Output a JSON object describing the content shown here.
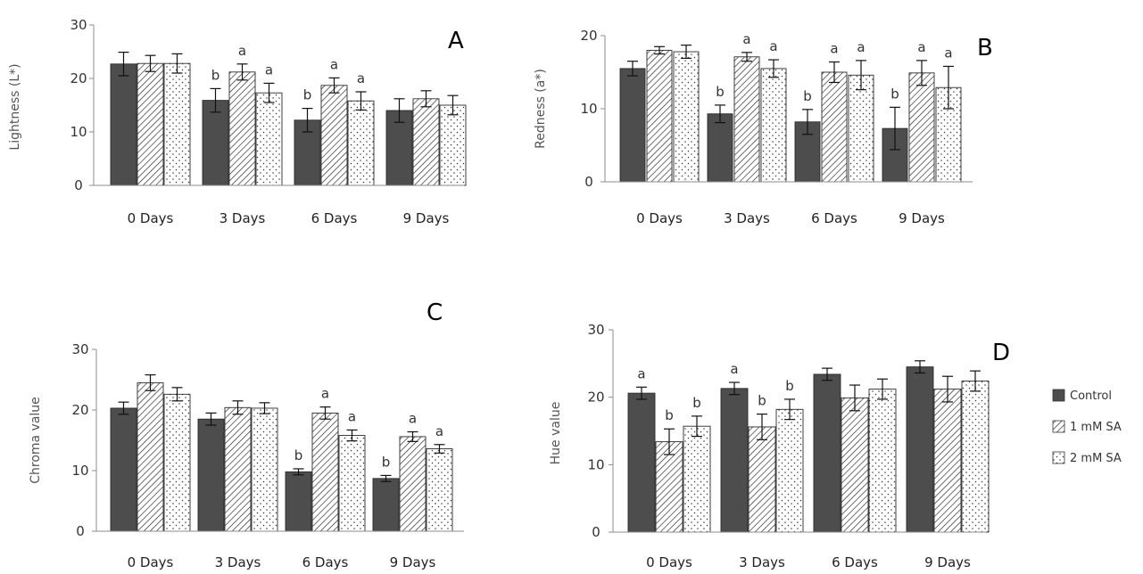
{
  "figure": {
    "categories": [
      "0 Days",
      "3 Days",
      "6 Days",
      "9 Days"
    ],
    "legend": [
      "Control",
      "1 mM SA",
      "2 mM SA"
    ],
    "colors": {
      "control": "#4d4d4d",
      "sa1": "#ffffff",
      "sa2": "#ffffff",
      "axis": "#7f7f7f",
      "text": "#333333"
    }
  },
  "chart_data": [
    {
      "type": "bar",
      "panel_label": "A",
      "ylabel": "Lightness (L*)",
      "ylim": [
        0,
        30
      ],
      "yticks": [
        0,
        10,
        20,
        30
      ],
      "categories": [
        "0 Days",
        "3 Days",
        "6 Days",
        "9 Days"
      ],
      "series": [
        {
          "name": "Control",
          "values": [
            22.7,
            15.9,
            12.2,
            14.0
          ],
          "errors": [
            2.2,
            2.2,
            2.2,
            2.2
          ],
          "letters": [
            "",
            "b",
            "b",
            ""
          ]
        },
        {
          "name": "1 mM SA",
          "values": [
            22.8,
            21.2,
            18.7,
            16.2
          ],
          "errors": [
            1.5,
            1.5,
            1.4,
            1.5
          ],
          "letters": [
            "",
            "a",
            "a",
            ""
          ]
        },
        {
          "name": "2 mM SA",
          "values": [
            22.8,
            17.3,
            15.8,
            15.0
          ],
          "errors": [
            1.8,
            1.8,
            1.7,
            1.8
          ],
          "letters": [
            "",
            "a",
            "a",
            ""
          ]
        }
      ]
    },
    {
      "type": "bar",
      "panel_label": "B",
      "ylabel": "Redness (a*)",
      "ylim": [
        0,
        20
      ],
      "yticks": [
        0,
        10,
        20
      ],
      "categories": [
        "0 Days",
        "3 Days",
        "6 Days",
        "9 Days"
      ],
      "series": [
        {
          "name": "Control",
          "values": [
            15.5,
            9.3,
            8.2,
            7.3
          ],
          "errors": [
            1.0,
            1.2,
            1.7,
            2.9
          ],
          "letters": [
            "",
            "b",
            "b",
            "b"
          ]
        },
        {
          "name": "1 mM SA",
          "values": [
            18.0,
            17.1,
            15.0,
            14.9
          ],
          "errors": [
            0.5,
            0.6,
            1.4,
            1.7
          ],
          "letters": [
            "",
            "a",
            "a",
            "a"
          ]
        },
        {
          "name": "2 mM SA",
          "values": [
            17.8,
            15.5,
            14.6,
            12.9
          ],
          "errors": [
            0.9,
            1.2,
            2.0,
            2.9
          ],
          "letters": [
            "",
            "a",
            "a",
            "a"
          ]
        }
      ]
    },
    {
      "type": "bar",
      "panel_label": "C",
      "ylabel": "Chroma value",
      "ylim": [
        0,
        30
      ],
      "yticks": [
        0,
        10,
        20,
        30
      ],
      "categories": [
        "0 Days",
        "3 Days",
        "6 Days",
        "9 Days"
      ],
      "series": [
        {
          "name": "Control",
          "values": [
            20.3,
            18.5,
            9.8,
            8.7
          ],
          "errors": [
            1.0,
            1.0,
            0.5,
            0.5
          ],
          "letters": [
            "",
            "",
            "b",
            "b"
          ]
        },
        {
          "name": "1 mM SA",
          "values": [
            24.5,
            20.4,
            19.5,
            15.6
          ],
          "errors": [
            1.3,
            1.1,
            1.0,
            0.8
          ],
          "letters": [
            "",
            "",
            "a",
            "a"
          ]
        },
        {
          "name": "2 mM SA",
          "values": [
            22.6,
            20.3,
            15.8,
            13.6
          ],
          "errors": [
            1.1,
            0.9,
            0.9,
            0.7
          ],
          "letters": [
            "",
            "",
            "a",
            "a"
          ]
        }
      ]
    },
    {
      "type": "bar",
      "panel_label": "D",
      "ylabel": "Hue value",
      "ylim": [
        0,
        30
      ],
      "yticks": [
        0,
        10,
        20,
        30
      ],
      "categories": [
        "0 Days",
        "3 Days",
        "6 Days",
        "9 Days"
      ],
      "series": [
        {
          "name": "Control",
          "values": [
            20.6,
            21.3,
            23.4,
            24.5
          ],
          "errors": [
            0.9,
            0.9,
            0.9,
            0.9
          ],
          "letters": [
            "a",
            "a",
            "",
            ""
          ]
        },
        {
          "name": "1 mM SA",
          "values": [
            13.4,
            15.6,
            19.9,
            21.2
          ],
          "errors": [
            1.9,
            1.9,
            1.9,
            1.9
          ],
          "letters": [
            "b",
            "b",
            "",
            ""
          ]
        },
        {
          "name": "2 mM SA",
          "values": [
            15.7,
            18.2,
            21.2,
            22.4
          ],
          "errors": [
            1.5,
            1.5,
            1.5,
            1.5
          ],
          "letters": [
            "b",
            "b",
            "",
            ""
          ]
        }
      ]
    }
  ]
}
